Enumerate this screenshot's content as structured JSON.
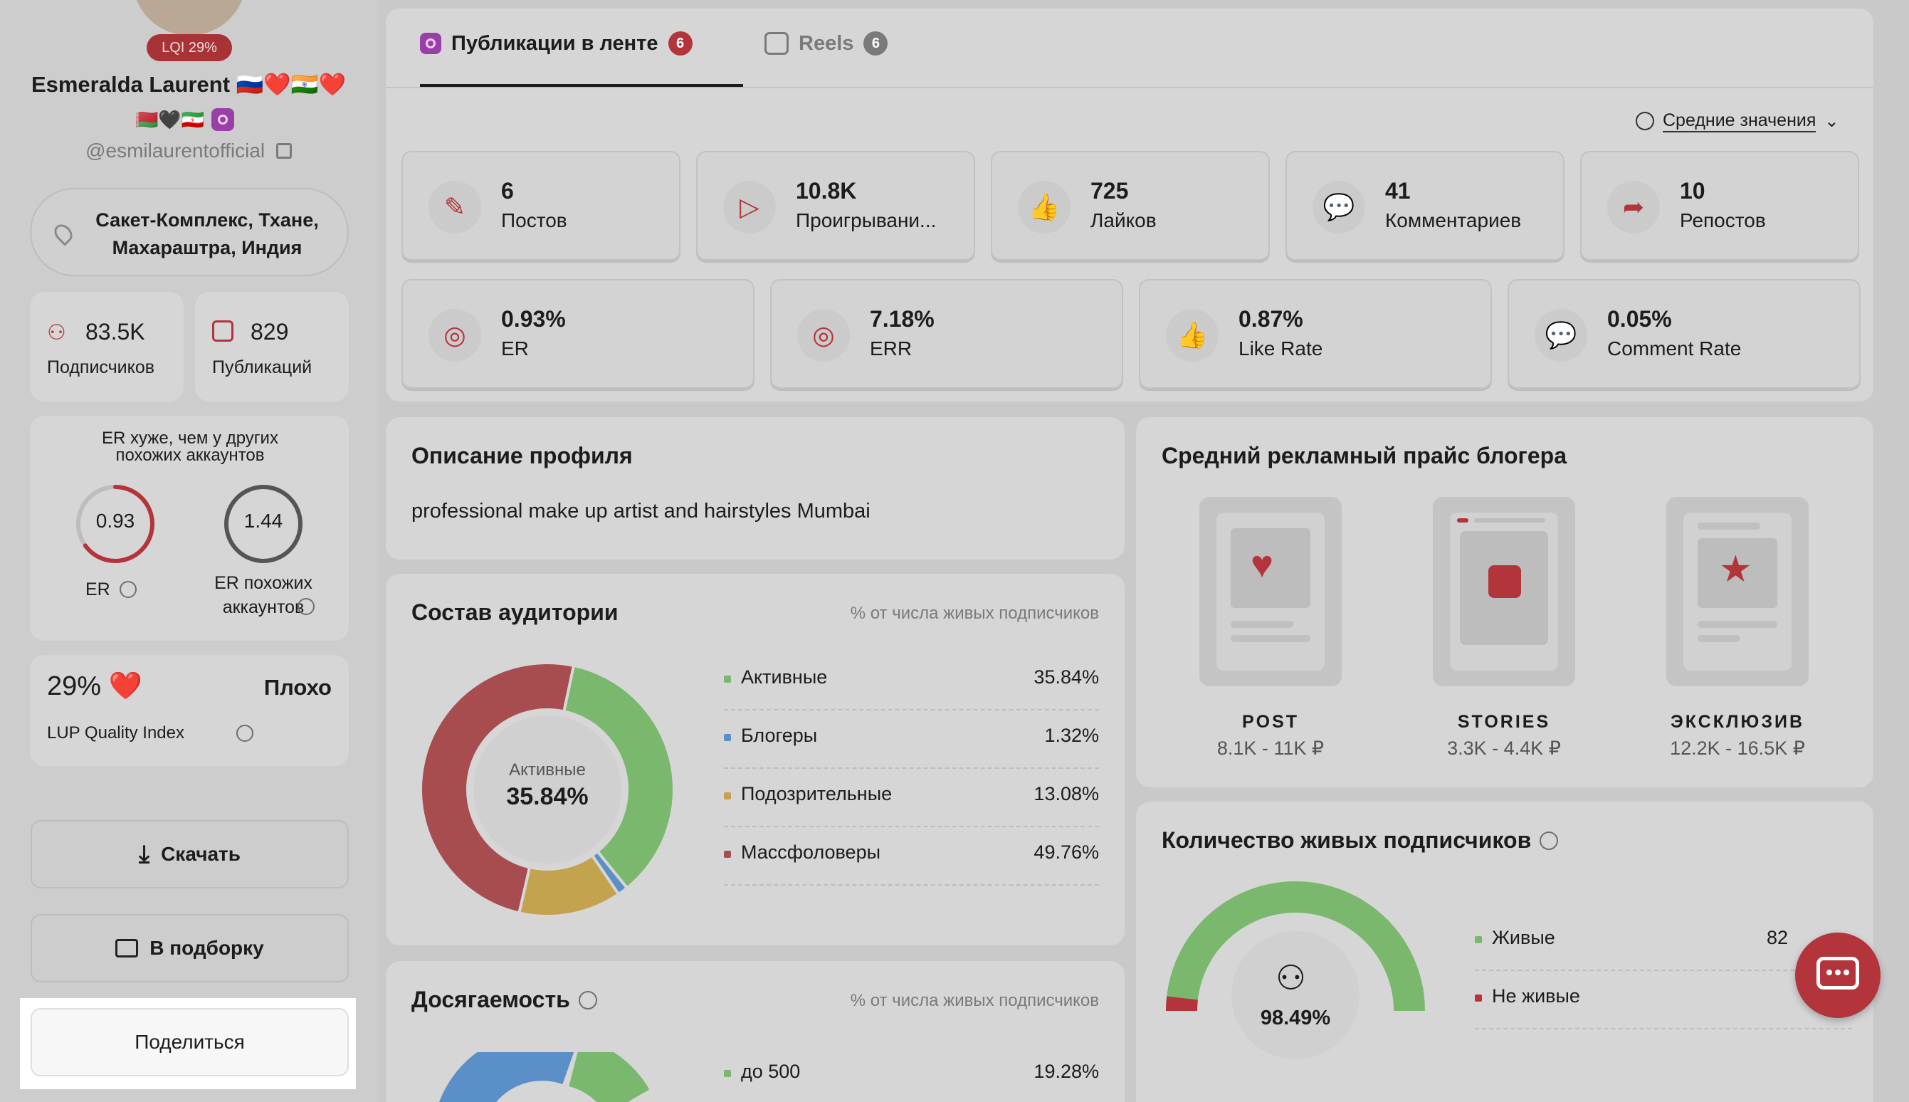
{
  "profile": {
    "lqi_badge": "LQI 29%",
    "name": "Esmeralda Laurent 🇷🇺❤️🇮🇳❤️",
    "flags_line": "🇧🇾🖤🇮🇷",
    "handle": "@esmilaurentofficial",
    "location": "Сакет-Комплекс, Тхане, Махараштра, Индия"
  },
  "stats": {
    "followers_value": "83.5K",
    "followers_label": "Подписчиков",
    "posts_value": "829",
    "posts_label": "Публикаций"
  },
  "er_compare": {
    "title": "ER хуже, чем у других похожих аккаунтов",
    "er_value": "0.93",
    "er_label": "ER",
    "similar_value": "1.44",
    "similar_label": "ER похожих аккаунтов",
    "er_fraction": 0.65
  },
  "quality": {
    "value": "29% ❤️",
    "verdict": "Плохо",
    "label": "LUP Quality Index"
  },
  "buttons": {
    "download": "Скачать",
    "collection": "В подборку",
    "share": "Поделиться"
  },
  "tabs": [
    {
      "label": "Публикации в ленте",
      "count": "6"
    },
    {
      "label": "Reels",
      "count": "6"
    }
  ],
  "averages_dropdown": "Средние значения",
  "metrics_row1": [
    {
      "value": "6",
      "label": "Постов",
      "icon": "edit-icon"
    },
    {
      "value": "10.8K",
      "label": "Проигрывани...",
      "icon": "play-icon"
    },
    {
      "value": "725",
      "label": "Лайков",
      "icon": "thumbs-up-icon"
    },
    {
      "value": "41",
      "label": "Комментариев",
      "icon": "comment-icon"
    },
    {
      "value": "10",
      "label": "Репостов",
      "icon": "share-icon"
    }
  ],
  "metrics_row2": [
    {
      "value": "0.93%",
      "label": "ER",
      "icon": "lifebuoy-icon"
    },
    {
      "value": "7.18%",
      "label": "ERR",
      "icon": "lifebuoy-icon"
    },
    {
      "value": "0.87%",
      "label": "Like Rate",
      "icon": "thumbs-up-icon"
    },
    {
      "value": "0.05%",
      "label": "Comment Rate",
      "icon": "comment-icon"
    }
  ],
  "description": {
    "title": "Описание профиля",
    "text": "professional make up artist and hairstyles Mumbai"
  },
  "price": {
    "title": "Средний рекламный прайс блогера",
    "items": [
      {
        "label": "POST",
        "value": "8.1K - 11K ₽"
      },
      {
        "label": "STORIES",
        "value": "3.3K - 4.4K ₽"
      },
      {
        "label": "ЭКСКЛЮЗИВ",
        "value": "12.2K - 16.5K ₽"
      }
    ]
  },
  "audience": {
    "title": "Состав аудитории",
    "subtitle": "% от числа живых подписчиков",
    "center_label": "Активные",
    "center_value": "35.84%"
  },
  "reach": {
    "title": "Досягаемость",
    "subtitle": "% от числа живых подписчиков",
    "first_label": "до 500",
    "first_value": "19.28%"
  },
  "live": {
    "title": "Количество живых подписчиков",
    "center_value": "98.49%",
    "legend": [
      {
        "label": "Живые",
        "value": "82"
      },
      {
        "label": "Не живые",
        "value": ""
      }
    ]
  },
  "chart_data": {
    "type": "pie",
    "categories": [
      "Активные",
      "Блогеры",
      "Подозрительные",
      "Массфоловеры"
    ],
    "values": [
      35.84,
      1.32,
      13.08,
      49.76
    ],
    "value_labels": [
      "35.84%",
      "1.32%",
      "13.08%",
      "49.76%"
    ],
    "colors": [
      "#7ab86d",
      "#5b8fc7",
      "#c4a34e",
      "#a84d4f"
    ]
  },
  "colors": {
    "accent_red": "#b83a3d",
    "green": "#7ab86d",
    "chat_button": "#b3343a"
  }
}
